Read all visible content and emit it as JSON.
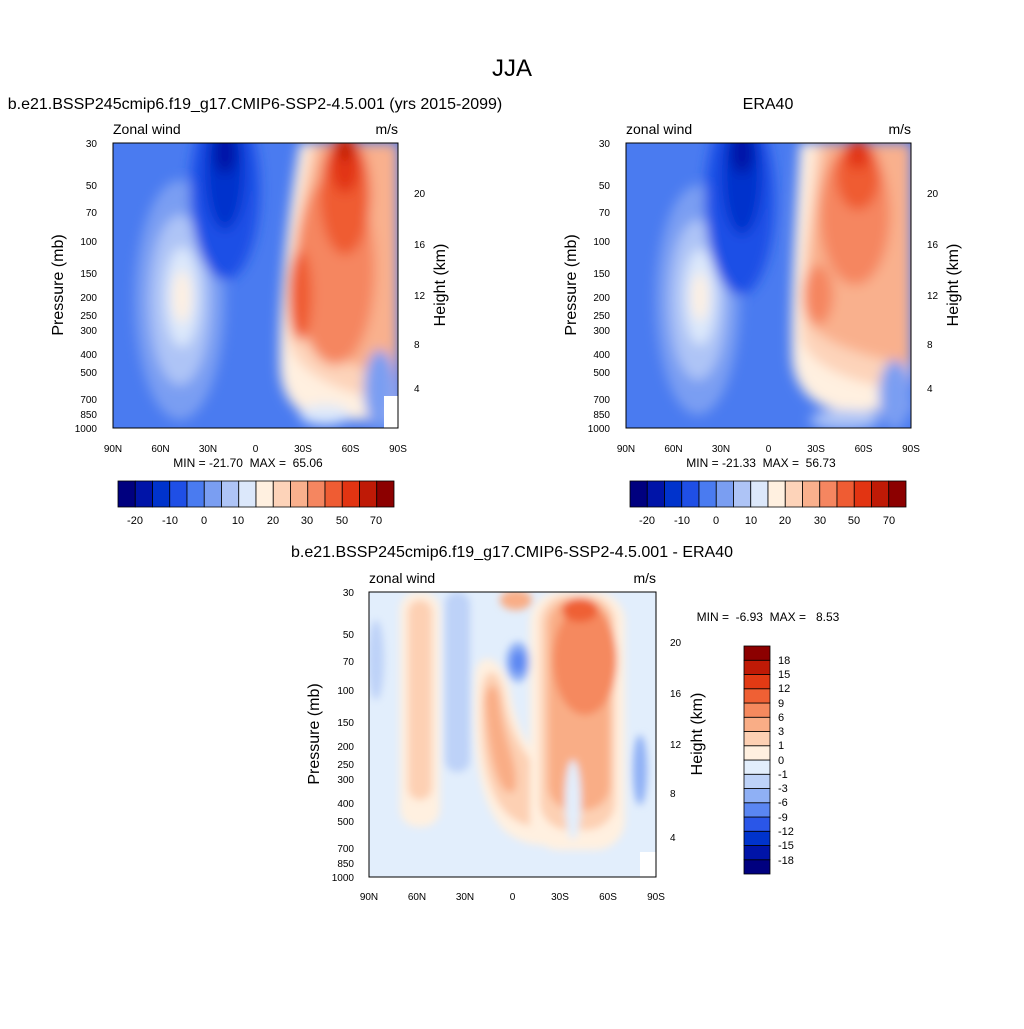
{
  "page_title": "JJA",
  "x_ticks": [
    "90N",
    "60N",
    "30N",
    "0",
    "30S",
    "60S",
    "90S"
  ],
  "pressure_ticks": [
    "30",
    "50",
    "70",
    "100",
    "150",
    "200",
    "250",
    "300",
    "400",
    "500",
    "700",
    "850",
    "1000"
  ],
  "height_ticks": [
    "20",
    "16",
    "12",
    "8",
    "4"
  ],
  "pressure_label": "Pressure (mb)",
  "height_label": "Height (km)",
  "colors": {
    "abs_scale": [
      "#00007f",
      "#0014a8",
      "#0033cc",
      "#1f4fe6",
      "#4a7bf0",
      "#7a9ef2",
      "#aec4f6",
      "#dce8fb",
      "#fff0e0",
      "#fdd3b9",
      "#f9b08d",
      "#f58660",
      "#ef5c33",
      "#e23412",
      "#bf1a06",
      "#8c0000"
    ],
    "diff_scale": [
      "#00007f",
      "#0014a8",
      "#0033cc",
      "#2a56e8",
      "#5a86f2",
      "#8fb0f5",
      "#bdd2f8",
      "#e2eefc",
      "#fff0e0",
      "#fdd0b3",
      "#f9ad86",
      "#f5895e",
      "#ef6034",
      "#e23a14",
      "#bf1a06",
      "#8c0000"
    ]
  },
  "top_left_title": "b.e21.BSSP245cmip6.f19_g17.CMIP6-SSP2-4.5.001 (yrs 2015-2099)",
  "top_right_title": "ERA40",
  "bottom_title": "b.e21.BSSP245cmip6.f19_g17.CMIP6-SSP2-4.5.001 - ERA40",
  "chart_data": [
    {
      "type": "heatmap",
      "title": "b.e21.BSSP245cmip6.f19_g17.CMIP6-SSP2-4.5.001 (yrs 2015-2099)",
      "left_label": "Zonal wind",
      "right_label": "m/s",
      "xlabel": "",
      "ylabel": "Pressure (mb)",
      "y2label": "Height (km)",
      "min_text": "MIN = -21.70  MAX =  65.06",
      "min": -21.7,
      "max": 65.06,
      "colorbar_labels": [
        "-20",
        "-10",
        "0",
        "10",
        "20",
        "30",
        "50",
        "70"
      ],
      "xlim": [
        "90N",
        "90S"
      ],
      "ylim": [
        1000,
        30
      ]
    },
    {
      "type": "heatmap",
      "title": "ERA40",
      "left_label": "zonal wind",
      "right_label": "m/s",
      "xlabel": "",
      "ylabel": "Pressure (mb)",
      "y2label": "Height (km)",
      "min_text": "MIN = -21.33  MAX =  56.73",
      "min": -21.33,
      "max": 56.73,
      "colorbar_labels": [
        "-20",
        "-10",
        "0",
        "10",
        "20",
        "30",
        "50",
        "70"
      ],
      "xlim": [
        "90N",
        "90S"
      ],
      "ylim": [
        1000,
        30
      ]
    },
    {
      "type": "heatmap",
      "title": "b.e21.BSSP245cmip6.f19_g17.CMIP6-SSP2-4.5.001 - ERA40",
      "left_label": "zonal wind",
      "right_label": "m/s",
      "xlabel": "",
      "ylabel": "Pressure (mb)",
      "y2label": "Height (km)",
      "min_text": "MIN =  -6.93  MAX =   8.53",
      "min": -6.93,
      "max": 8.53,
      "colorbar_labels": [
        "18",
        "15",
        "12",
        "9",
        "6",
        "3",
        "1",
        "0",
        "-1",
        "-3",
        "-6",
        "-9",
        "-12",
        "-15",
        "-18"
      ],
      "xlim": [
        "90N",
        "90S"
      ],
      "ylim": [
        1000,
        30
      ]
    }
  ]
}
